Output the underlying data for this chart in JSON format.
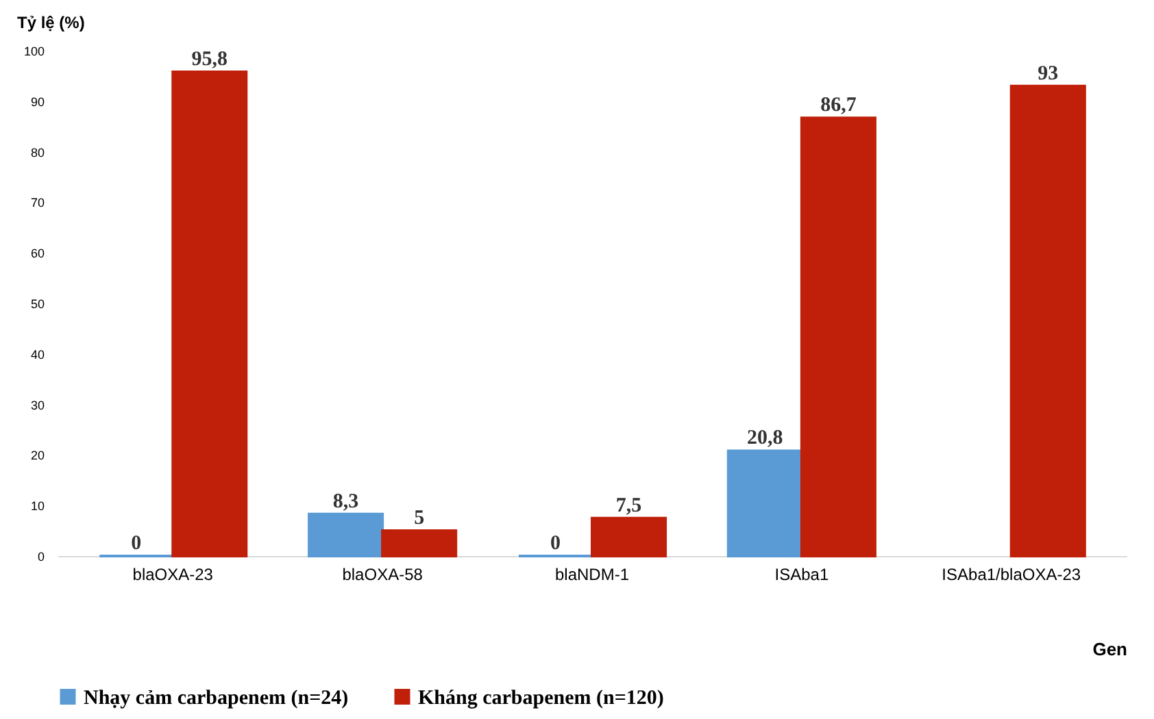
{
  "chart_data": {
    "type": "bar",
    "xlabel": "Gen",
    "ylabel": "Tỷ lệ (%)",
    "categories": [
      "blaOXA-23",
      "blaOXA-58",
      "blaNDM-1",
      "ISAba1",
      "ISAba1/blaOXA-23"
    ],
    "series": [
      {
        "name": "Nhạy cảm carbapenem (n=24)",
        "color": "#5b9bd5",
        "values": [
          0,
          8.3,
          0,
          20.8,
          null
        ],
        "value_labels": [
          "0",
          "8,3",
          "0",
          "20,8",
          null
        ]
      },
      {
        "name": "Kháng carbapenem (n=120)",
        "color": "#c0200a",
        "values": [
          95.8,
          5,
          7.5,
          86.7,
          93
        ],
        "value_labels": [
          "95,8",
          "5",
          "7,5",
          "86,7",
          "93"
        ]
      }
    ],
    "ylim": [
      0,
      100
    ],
    "yticks": [
      0,
      10,
      20,
      30,
      40,
      50,
      60,
      70,
      80,
      90,
      100
    ],
    "grid": false,
    "legend": "bottom"
  }
}
